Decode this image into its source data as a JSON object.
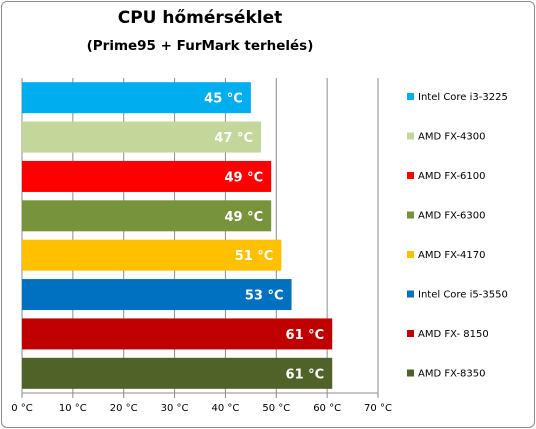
{
  "chart_data": {
    "type": "bar",
    "orientation": "horizontal",
    "title": "CPU hőmérséklet",
    "subtitle": "(Prime95 + FurMark terhelés)",
    "xlim": [
      0,
      70
    ],
    "xticks": [
      "0 °C",
      "10 °C",
      "20 °C",
      "30 °C",
      "40 °C",
      "50 °C",
      "60 °C",
      "70 °C"
    ],
    "grid": true,
    "legend_position": "right",
    "categories": [
      "Intel Core i3-3225",
      "AMD FX-4300",
      "AMD FX-6100",
      "AMD FX-6300",
      "AMD FX-4170",
      "Intel Core i5-3550",
      "AMD FX- 8150",
      "AMD FX-8350"
    ],
    "values": [
      45,
      47,
      49,
      49,
      51,
      53,
      61,
      61
    ],
    "data_labels": [
      "45 °C",
      "47 °C",
      "49 °C",
      "49 °C",
      "51 °C",
      "53 °C",
      "61 °C",
      "61 °C"
    ],
    "colors": [
      "#00aeef",
      "#c4d79b",
      "#ff0000",
      "#77933c",
      "#ffc000",
      "#0070c0",
      "#c00000",
      "#4f6228"
    ]
  }
}
